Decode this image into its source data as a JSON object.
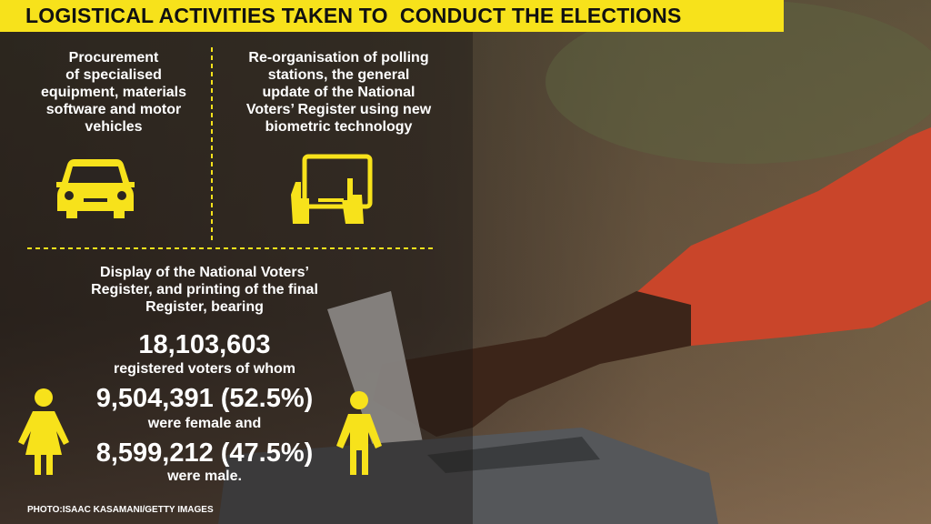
{
  "title": "LOGISTICAL ACTIVITIES TAKEN TO  CONDUCT THE ELECTIONS",
  "items": [
    {
      "lines": [
        "Procurement",
        "of specialised",
        "equipment, materials",
        "software and motor",
        "vehicles"
      ]
    },
    {
      "lines": [
        "Re-organisation of polling",
        "stations, the general",
        "update of the National",
        "Voters’ Register using new",
        "biometric technology"
      ]
    }
  ],
  "register": {
    "intro_lines": [
      "Display of the National Voters’",
      "Register, and printing of the final",
      "Register, bearing"
    ],
    "total": "18,103,603",
    "total_caption": "registered voters of whom",
    "female": "9,504,391 (52.5%)",
    "female_caption": "were female and",
    "male": "8,599,212 (47.5%)",
    "male_caption": "were male."
  },
  "credit": "PHOTO:ISAAC KASAMANI/GETTY IMAGES"
}
